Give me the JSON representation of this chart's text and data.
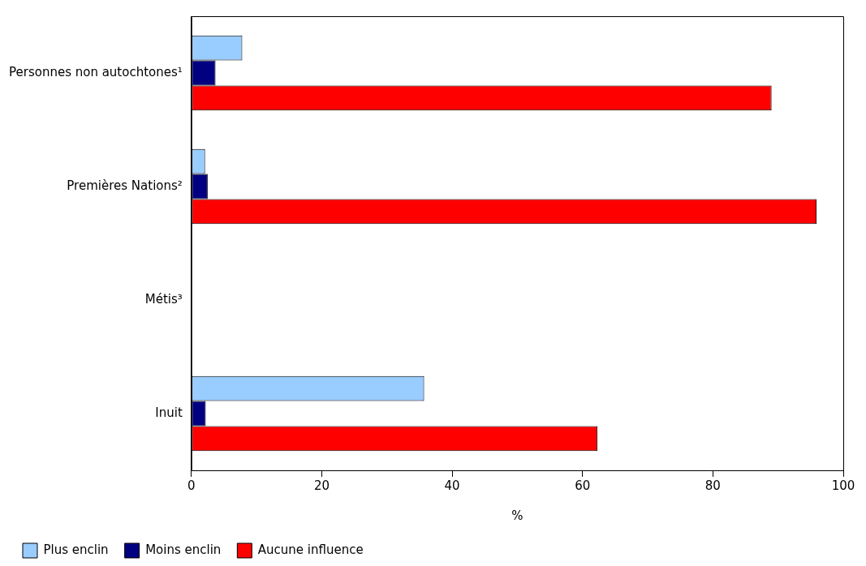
{
  "chart_data": {
    "type": "bar",
    "orientation": "horizontal",
    "xlabel": "%",
    "categories": [
      "Personnes non autochtones¹",
      "Premières Nations²",
      "Métis³",
      "Inuit"
    ],
    "series": [
      {
        "name": "Plus enclin",
        "color": "#99ccff",
        "values": [
          7.8,
          2.1,
          null,
          35.7
        ]
      },
      {
        "name": "Moins enclin",
        "color": "#000080",
        "values": [
          3.7,
          2.5,
          null,
          2.2
        ]
      },
      {
        "name": "Aucune influence",
        "color": "#ff0000",
        "values": [
          89.0,
          95.9,
          null,
          62.3
        ]
      }
    ],
    "xlim": [
      0,
      100
    ],
    "xticks": [
      0,
      20,
      40,
      60,
      80,
      100
    ],
    "grid": false,
    "legend": "bottom"
  }
}
